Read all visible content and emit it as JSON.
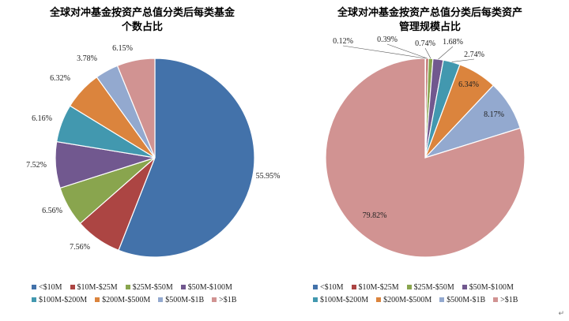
{
  "colors": {
    "<$10M": "#4372AA",
    "$10M-$25M": "#AC4543",
    "$25M-$50M": "#89A54E",
    "$50M-$100M": "#71588F",
    "$100M-$200M": "#4298AF",
    "$200M-$500M": "#DB843D",
    "$500M-$1B": "#93A9CF",
    ">$1B": "#D19392"
  },
  "chart_data": [
    {
      "type": "pie",
      "title": "全球对冲基金按资产总值分类后每类基金个数占比",
      "title_lines": [
        "全球对冲基金按资产总值分类后每类基金",
        "个数占比"
      ],
      "categories": [
        "<$10M",
        "$10M-$25M",
        "$25M-$50M",
        "$50M-$100M",
        "$100M-$200M",
        "$200M-$500M",
        "$500M-$1B",
        ">$1B"
      ],
      "values": [
        55.95,
        7.56,
        6.56,
        7.52,
        6.16,
        6.32,
        3.78,
        6.15
      ],
      "labels": [
        "55.95%",
        "7.56%",
        "6.56%",
        "7.52%",
        "6.16%",
        "6.32%",
        "3.78%",
        "6.15%"
      ],
      "legend": [
        "<$10M",
        "$10M-$25M",
        "$25M-$50M",
        "$50M-$100M",
        "$100M-$200M",
        "$200M-$500M",
        "$500M-$1B",
        ">$1B"
      ],
      "legend_position": "bottom"
    },
    {
      "type": "pie",
      "title": "全球对冲基金按资产总值分类后每类资产管理规模占比",
      "title_lines": [
        "全球对冲基金按资产总值分类后每类资产",
        "管理规模占比"
      ],
      "categories": [
        "<$10M",
        "$10M-$25M",
        "$25M-$50M",
        "$50M-$100M",
        "$100M-$200M",
        "$200M-$500M",
        "$500M-$1B",
        ">$1B"
      ],
      "values": [
        0.12,
        0.39,
        0.74,
        1.68,
        2.74,
        6.34,
        8.17,
        79.82
      ],
      "labels": [
        "0.12%",
        "0.39%",
        "0.74%",
        "1.68%",
        "2.74%",
        "6.34%",
        "8.17%",
        "79.82%"
      ],
      "legend": [
        "<$10M",
        "$10M-$25M",
        "$25M-$50M",
        "$50M-$100M",
        "$100M-$200M",
        "$200M-$500M",
        "$500M-$1B",
        ">$1B"
      ],
      "legend_position": "bottom"
    }
  ],
  "return_mark": "↵"
}
